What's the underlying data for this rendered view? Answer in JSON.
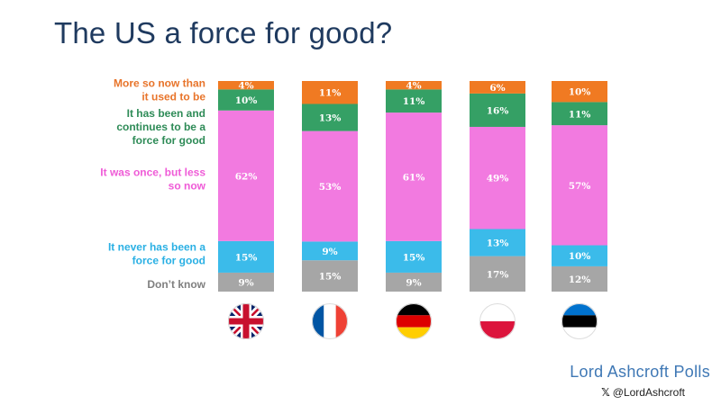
{
  "header": {
    "title": "The US a force for good?"
  },
  "footer": {
    "brand": "Lord Ashcroft Polls",
    "handle": "@LordAshcroft",
    "handle_icon": "x-logo-icon"
  },
  "chart_data": {
    "type": "bar",
    "stacked": true,
    "orientation": "vertical",
    "title": "The US a force for good?",
    "xlabel": "",
    "ylabel": "",
    "ylim": [
      0,
      100
    ],
    "grid": false,
    "legend_position": "left",
    "categories": [
      "United Kingdom",
      "France",
      "Germany",
      "Poland",
      "Estonia"
    ],
    "category_icons": [
      "uk-flag-icon",
      "france-flag-icon",
      "germany-flag-icon",
      "poland-flag-icon",
      "estonia-flag-icon"
    ],
    "series": [
      {
        "name": "Don’t know",
        "lines": [
          "Don’t know"
        ],
        "color": "#a6a6a6",
        "label_color": "#7f7f7f",
        "values": [
          9,
          15,
          9,
          17,
          12
        ]
      },
      {
        "name": "It never has been a force for good",
        "lines": [
          "It never has been a",
          "force for good"
        ],
        "color": "#3bbbea",
        "label_color": "#2ab0e4",
        "values": [
          15,
          9,
          15,
          13,
          10
        ]
      },
      {
        "name": "It was once, but less so now",
        "lines": [
          "It was once, but less",
          "so now"
        ],
        "color": "#f27ae0",
        "label_color": "#ef5bd7",
        "values": [
          62,
          53,
          61,
          49,
          57
        ]
      },
      {
        "name": "It has been and continues to be a force for good",
        "lines": [
          "It has been and",
          "continues to be a",
          "force for good"
        ],
        "color": "#35a065",
        "label_color": "#2e8b57",
        "values": [
          10,
          13,
          11,
          16,
          11
        ]
      },
      {
        "name": "More so now than it used to be",
        "lines": [
          "More so now than",
          "it used to be"
        ],
        "color": "#f07a22",
        "label_color": "#e8742a",
        "values": [
          4,
          11,
          4,
          6,
          10
        ]
      }
    ]
  }
}
